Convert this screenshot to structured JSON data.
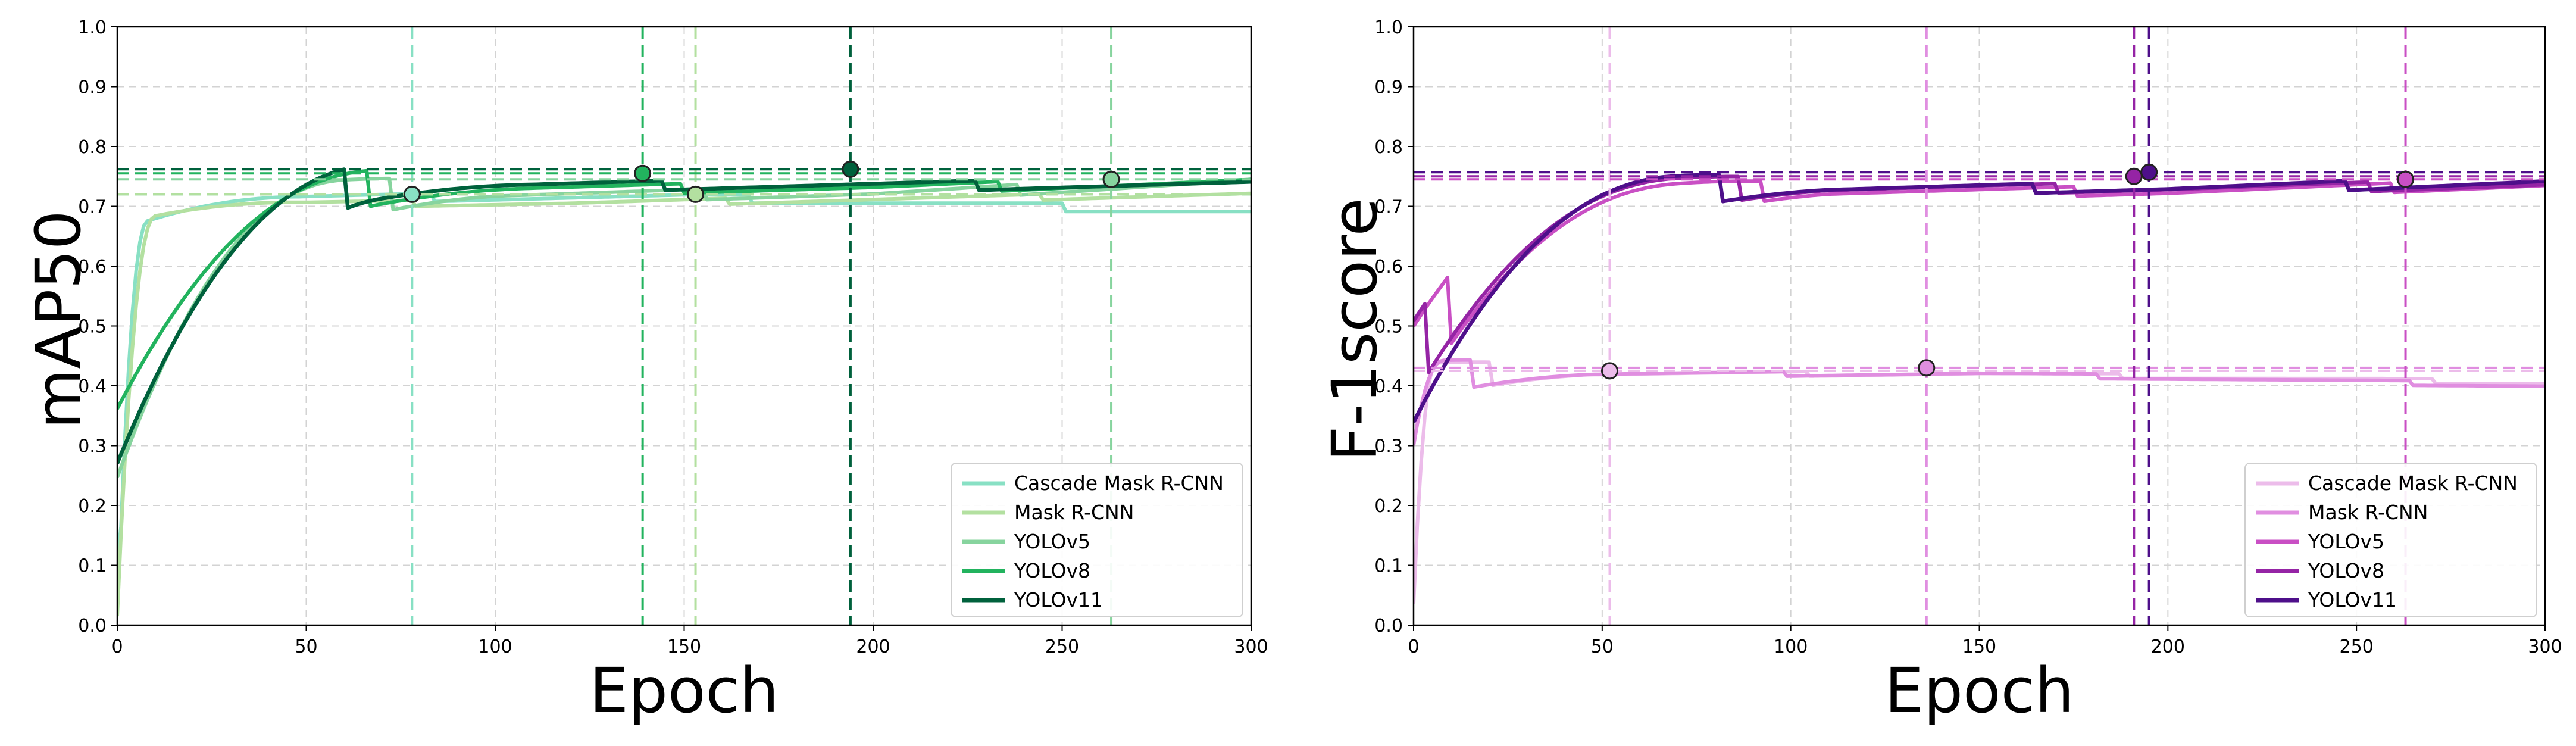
{
  "chart_data": [
    {
      "type": "line",
      "title": "",
      "xlabel": "Epoch",
      "ylabel": "mAP50",
      "xlim": [
        0,
        300
      ],
      "ylim": [
        0,
        1.0
      ],
      "xticks": [
        "0",
        "50",
        "100",
        "150",
        "200",
        "250",
        "300"
      ],
      "yticks": [
        "0.0",
        "0.1",
        "0.2",
        "0.3",
        "0.4",
        "0.5",
        "0.6",
        "0.7",
        "0.8",
        "0.9",
        "1.0"
      ],
      "grid": true,
      "legend_position": "bottom-right",
      "series": [
        {
          "name": "Cascade Mask R-CNN",
          "color": "#88e0c4",
          "start": 0.05,
          "rise_end": 8,
          "plateau": 0.715,
          "final": 0.69,
          "decline_start": 150,
          "noise": 0.007,
          "best_epoch": 78,
          "best_value": 0.72
        },
        {
          "name": "Mask R-CNN",
          "color": "#b3e0a0",
          "start": 0.05,
          "rise_end": 10,
          "plateau": 0.705,
          "final": 0.72,
          "decline_start": 120,
          "noise": 0.005,
          "best_epoch": 153,
          "best_value": 0.72
        },
        {
          "name": "YOLOv5",
          "color": "#87d49e",
          "start": 0.3,
          "rise_end": 60,
          "plateau": 0.72,
          "final": 0.74,
          "decline_start": 200,
          "noise": 0.009,
          "best_epoch": 263,
          "best_value": 0.745
        },
        {
          "name": "YOLOv8",
          "color": "#22b35e",
          "start": 0.4,
          "rise_end": 70,
          "plateau": 0.73,
          "final": 0.74,
          "decline_start": 200,
          "noise": 0.008,
          "best_epoch": 139,
          "best_value": 0.755
        },
        {
          "name": "YOLOv11",
          "color": "#00613c",
          "start": 0.3,
          "rise_end": 70,
          "plateau": 0.735,
          "final": 0.735,
          "decline_start": 220,
          "noise": 0.008,
          "best_epoch": 194,
          "best_value": 0.762
        }
      ]
    },
    {
      "type": "line",
      "title": "",
      "xlabel": "Epoch",
      "ylabel": "F-1score",
      "xlim": [
        0,
        300
      ],
      "ylim": [
        0,
        1.0
      ],
      "xticks": [
        "0",
        "50",
        "100",
        "150",
        "200",
        "250",
        "300"
      ],
      "yticks": [
        "0.0",
        "0.1",
        "0.2",
        "0.3",
        "0.4",
        "0.5",
        "0.6",
        "0.7",
        "0.8",
        "0.9",
        "1.0"
      ],
      "grid": true,
      "legend_position": "bottom-right",
      "series": [
        {
          "name": "Cascade Mask R-CNN",
          "color": "#ecbcea",
          "start": 0.02,
          "rise_end": 6,
          "plateau": 0.42,
          "final": 0.405,
          "decline_start": 150,
          "noise": 0.004,
          "best_epoch": 52,
          "best_value": 0.425
        },
        {
          "name": "Mask R-CNN",
          "color": "#e08ee0",
          "start": 0.28,
          "rise_end": 8,
          "plateau": 0.42,
          "final": 0.4,
          "decline_start": 150,
          "noise": 0.004,
          "best_epoch": 136,
          "best_value": 0.43
        },
        {
          "name": "YOLOv5",
          "color": "#c94fc4",
          "start": 0.45,
          "rise_end": 70,
          "plateau": 0.725,
          "final": 0.735,
          "decline_start": 200,
          "noise": 0.008,
          "best_epoch": 263,
          "best_value": 0.745
        },
        {
          "name": "YOLOv8",
          "color": "#9524a5",
          "start": 0.45,
          "rise_end": 70,
          "plateau": 0.73,
          "final": 0.735,
          "decline_start": 200,
          "noise": 0.008,
          "best_epoch": 191,
          "best_value": 0.75
        },
        {
          "name": "YOLOv11",
          "color": "#4e0f8a",
          "start": 0.4,
          "rise_end": 70,
          "plateau": 0.73,
          "final": 0.74,
          "decline_start": 200,
          "noise": 0.008,
          "best_epoch": 195,
          "best_value": 0.757
        }
      ]
    }
  ]
}
